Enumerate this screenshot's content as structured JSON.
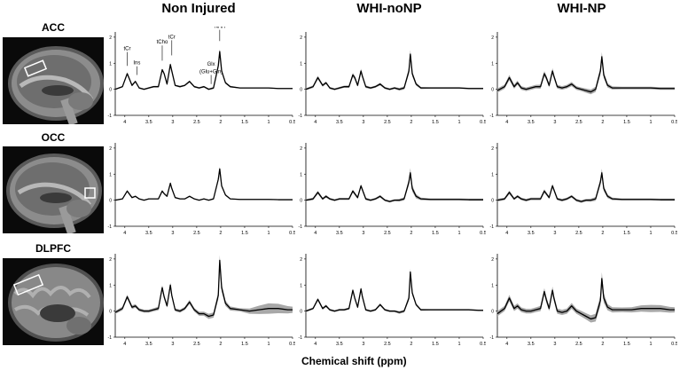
{
  "column_titles": [
    "Non Injured",
    "WHI-noNP",
    "WHI-NP"
  ],
  "row_titles": [
    "ACC",
    "OCC",
    "DLPFC"
  ],
  "x_axis_title": "Chemical shift (ppm)",
  "x_tick_labels": [
    "4",
    "3.5",
    "3",
    "2.5",
    "2",
    "1.5",
    "1",
    "0.5"
  ],
  "y_tick_labels": [
    "2",
    "1",
    "0",
    "-1"
  ],
  "peak_annotations": {
    "tCr_left": "tCr",
    "ins": "Ins",
    "tCho": "tCho",
    "tCr_right": "tCr",
    "glx": "Glx",
    "glx_sub": "(Glu+Gln)",
    "naa": "NAA"
  },
  "colors": {
    "mean_line": "#000000",
    "sd_band": "#a8a8a8",
    "axis": "#000000"
  },
  "chart_data": {
    "type": "line",
    "xlabel": "Chemical shift (ppm)",
    "xlim": [
      4.2,
      0.5
    ],
    "ylim": [
      -1,
      2.2
    ],
    "x": [
      4.2,
      4.05,
      3.95,
      3.85,
      3.78,
      3.7,
      3.6,
      3.5,
      3.4,
      3.3,
      3.22,
      3.18,
      3.12,
      3.05,
      3.02,
      2.95,
      2.85,
      2.75,
      2.65,
      2.55,
      2.45,
      2.35,
      2.25,
      2.15,
      2.05,
      2.02,
      1.98,
      1.9,
      1.8,
      1.6,
      1.4,
      1.2,
      1.0,
      0.8,
      0.6,
      0.5
    ],
    "panels": [
      {
        "row": "ACC",
        "column": "Non Injured",
        "mean": [
          0.0,
          0.1,
          0.6,
          0.15,
          0.3,
          0.05,
          0.0,
          0.05,
          0.1,
          0.1,
          0.75,
          0.6,
          0.2,
          0.95,
          0.7,
          0.15,
          0.1,
          0.15,
          0.3,
          0.1,
          0.05,
          0.1,
          0.0,
          0.05,
          0.9,
          1.45,
          0.7,
          0.25,
          0.1,
          0.05,
          0.05,
          0.05,
          0.05,
          0.03,
          0.03,
          0.03
        ],
        "sd": [
          0.02,
          0.03,
          0.05,
          0.04,
          0.04,
          0.03,
          0.03,
          0.03,
          0.03,
          0.03,
          0.05,
          0.05,
          0.04,
          0.06,
          0.05,
          0.03,
          0.03,
          0.03,
          0.04,
          0.03,
          0.03,
          0.03,
          0.03,
          0.04,
          0.08,
          0.1,
          0.06,
          0.04,
          0.03,
          0.02,
          0.02,
          0.02,
          0.02,
          0.02,
          0.02,
          0.02
        ]
      },
      {
        "row": "ACC",
        "column": "WHI-noNP",
        "mean": [
          0.0,
          0.1,
          0.45,
          0.15,
          0.25,
          0.05,
          0.0,
          0.05,
          0.1,
          0.1,
          0.55,
          0.45,
          0.15,
          0.7,
          0.5,
          0.1,
          0.05,
          0.1,
          0.2,
          0.05,
          0.0,
          0.05,
          0.0,
          0.05,
          0.7,
          1.35,
          0.6,
          0.2,
          0.05,
          0.05,
          0.05,
          0.05,
          0.05,
          0.03,
          0.03,
          0.03
        ],
        "sd": [
          0.04,
          0.05,
          0.07,
          0.05,
          0.05,
          0.04,
          0.04,
          0.04,
          0.04,
          0.05,
          0.08,
          0.07,
          0.05,
          0.09,
          0.07,
          0.05,
          0.04,
          0.04,
          0.05,
          0.04,
          0.04,
          0.04,
          0.05,
          0.06,
          0.12,
          0.16,
          0.1,
          0.06,
          0.04,
          0.03,
          0.03,
          0.03,
          0.03,
          0.03,
          0.03,
          0.03
        ]
      },
      {
        "row": "ACC",
        "column": "WHI-NP",
        "mean": [
          -0.05,
          0.1,
          0.45,
          0.1,
          0.25,
          0.05,
          0.0,
          0.05,
          0.1,
          0.1,
          0.6,
          0.45,
          0.15,
          0.7,
          0.5,
          0.1,
          0.05,
          0.1,
          0.2,
          0.05,
          0.0,
          -0.05,
          -0.1,
          0.0,
          0.7,
          1.25,
          0.55,
          0.15,
          0.05,
          0.05,
          0.05,
          0.05,
          0.05,
          0.03,
          0.03,
          0.03
        ],
        "sd": [
          0.08,
          0.08,
          0.1,
          0.08,
          0.08,
          0.07,
          0.07,
          0.07,
          0.07,
          0.08,
          0.1,
          0.09,
          0.08,
          0.11,
          0.09,
          0.07,
          0.07,
          0.07,
          0.08,
          0.07,
          0.07,
          0.08,
          0.09,
          0.1,
          0.14,
          0.18,
          0.12,
          0.08,
          0.06,
          0.05,
          0.05,
          0.05,
          0.05,
          0.05,
          0.05,
          0.05
        ]
      },
      {
        "row": "OCC",
        "column": "Non Injured",
        "mean": [
          0.0,
          0.05,
          0.35,
          0.1,
          0.15,
          0.05,
          0.0,
          0.05,
          0.05,
          0.05,
          0.35,
          0.25,
          0.15,
          0.65,
          0.45,
          0.1,
          0.05,
          0.05,
          0.15,
          0.05,
          0.0,
          0.05,
          0.0,
          0.05,
          0.8,
          1.2,
          0.55,
          0.2,
          0.05,
          0.03,
          0.03,
          0.03,
          0.03,
          0.02,
          0.02,
          0.02
        ],
        "sd": [
          0.02,
          0.02,
          0.04,
          0.03,
          0.03,
          0.02,
          0.02,
          0.02,
          0.02,
          0.02,
          0.04,
          0.03,
          0.03,
          0.05,
          0.04,
          0.02,
          0.02,
          0.02,
          0.03,
          0.02,
          0.02,
          0.02,
          0.02,
          0.03,
          0.07,
          0.09,
          0.05,
          0.03,
          0.02,
          0.02,
          0.02,
          0.02,
          0.02,
          0.02,
          0.02,
          0.02
        ]
      },
      {
        "row": "OCC",
        "column": "WHI-noNP",
        "mean": [
          0.0,
          0.05,
          0.3,
          0.05,
          0.15,
          0.05,
          0.0,
          0.05,
          0.05,
          0.05,
          0.35,
          0.25,
          0.1,
          0.55,
          0.4,
          0.05,
          0.0,
          0.05,
          0.15,
          0.0,
          -0.05,
          0.0,
          0.0,
          0.05,
          0.7,
          1.05,
          0.45,
          0.15,
          0.05,
          0.03,
          0.03,
          0.03,
          0.03,
          0.02,
          0.02,
          0.02
        ],
        "sd": [
          0.04,
          0.05,
          0.06,
          0.05,
          0.05,
          0.04,
          0.04,
          0.04,
          0.04,
          0.04,
          0.06,
          0.06,
          0.05,
          0.07,
          0.06,
          0.05,
          0.04,
          0.04,
          0.05,
          0.04,
          0.04,
          0.04,
          0.05,
          0.06,
          0.12,
          0.18,
          0.12,
          0.08,
          0.05,
          0.04,
          0.04,
          0.04,
          0.04,
          0.04,
          0.04,
          0.04
        ]
      },
      {
        "row": "OCC",
        "column": "WHI-NP",
        "mean": [
          0.0,
          0.05,
          0.3,
          0.05,
          0.15,
          0.05,
          0.0,
          0.05,
          0.05,
          0.05,
          0.35,
          0.25,
          0.1,
          0.55,
          0.4,
          0.05,
          0.0,
          0.05,
          0.15,
          0.0,
          -0.05,
          0.0,
          0.0,
          0.05,
          0.7,
          1.05,
          0.45,
          0.15,
          0.05,
          0.03,
          0.03,
          0.03,
          0.03,
          0.02,
          0.02,
          0.02
        ],
        "sd": [
          0.05,
          0.05,
          0.07,
          0.05,
          0.05,
          0.05,
          0.05,
          0.05,
          0.05,
          0.05,
          0.07,
          0.06,
          0.05,
          0.08,
          0.07,
          0.05,
          0.05,
          0.05,
          0.05,
          0.05,
          0.05,
          0.05,
          0.06,
          0.07,
          0.12,
          0.16,
          0.1,
          0.07,
          0.05,
          0.04,
          0.04,
          0.04,
          0.04,
          0.04,
          0.04,
          0.04
        ]
      },
      {
        "row": "DLPFC",
        "column": "Non Injured",
        "mean": [
          -0.05,
          0.1,
          0.55,
          0.15,
          0.2,
          0.05,
          0.0,
          0.0,
          0.05,
          0.1,
          0.9,
          0.55,
          0.2,
          1.0,
          0.6,
          0.05,
          0.0,
          0.1,
          0.35,
          0.05,
          -0.1,
          -0.1,
          -0.2,
          -0.15,
          0.6,
          1.95,
          0.9,
          0.3,
          0.1,
          0.05,
          0.0,
          0.05,
          0.1,
          0.1,
          0.05,
          0.05
        ],
        "sd": [
          0.06,
          0.07,
          0.08,
          0.07,
          0.07,
          0.06,
          0.06,
          0.06,
          0.06,
          0.07,
          0.1,
          0.08,
          0.07,
          0.1,
          0.08,
          0.06,
          0.06,
          0.06,
          0.08,
          0.07,
          0.08,
          0.08,
          0.1,
          0.1,
          0.15,
          0.2,
          0.15,
          0.1,
          0.08,
          0.06,
          0.1,
          0.16,
          0.2,
          0.18,
          0.14,
          0.12
        ]
      },
      {
        "row": "DLPFC",
        "column": "WHI-noNP",
        "mean": [
          0.0,
          0.1,
          0.45,
          0.1,
          0.2,
          0.05,
          0.0,
          0.05,
          0.05,
          0.1,
          0.8,
          0.5,
          0.15,
          0.85,
          0.55,
          0.05,
          0.0,
          0.05,
          0.25,
          0.05,
          0.0,
          0.0,
          -0.05,
          0.0,
          0.5,
          1.5,
          0.7,
          0.25,
          0.05,
          0.05,
          0.05,
          0.05,
          0.05,
          0.05,
          0.03,
          0.03
        ],
        "sd": [
          0.04,
          0.04,
          0.06,
          0.05,
          0.05,
          0.04,
          0.04,
          0.04,
          0.04,
          0.04,
          0.07,
          0.06,
          0.05,
          0.08,
          0.06,
          0.04,
          0.04,
          0.04,
          0.05,
          0.04,
          0.04,
          0.04,
          0.05,
          0.05,
          0.1,
          0.13,
          0.09,
          0.05,
          0.04,
          0.03,
          0.03,
          0.03,
          0.03,
          0.03,
          0.03,
          0.03
        ]
      },
      {
        "row": "DLPFC",
        "column": "WHI-NP",
        "mean": [
          -0.1,
          0.1,
          0.5,
          0.1,
          0.2,
          0.05,
          0.0,
          0.0,
          0.05,
          0.1,
          0.75,
          0.45,
          0.1,
          0.8,
          0.5,
          0.0,
          -0.05,
          0.0,
          0.2,
          0.0,
          -0.1,
          -0.2,
          -0.3,
          -0.25,
          0.4,
          1.25,
          0.5,
          0.15,
          0.05,
          0.05,
          0.05,
          0.1,
          0.1,
          0.1,
          0.05,
          0.05
        ],
        "sd": [
          0.1,
          0.1,
          0.12,
          0.1,
          0.1,
          0.09,
          0.09,
          0.09,
          0.09,
          0.1,
          0.13,
          0.12,
          0.1,
          0.14,
          0.12,
          0.1,
          0.1,
          0.1,
          0.11,
          0.1,
          0.11,
          0.12,
          0.14,
          0.15,
          0.2,
          0.25,
          0.18,
          0.12,
          0.1,
          0.09,
          0.1,
          0.12,
          0.14,
          0.13,
          0.11,
          0.1
        ]
      }
    ]
  }
}
